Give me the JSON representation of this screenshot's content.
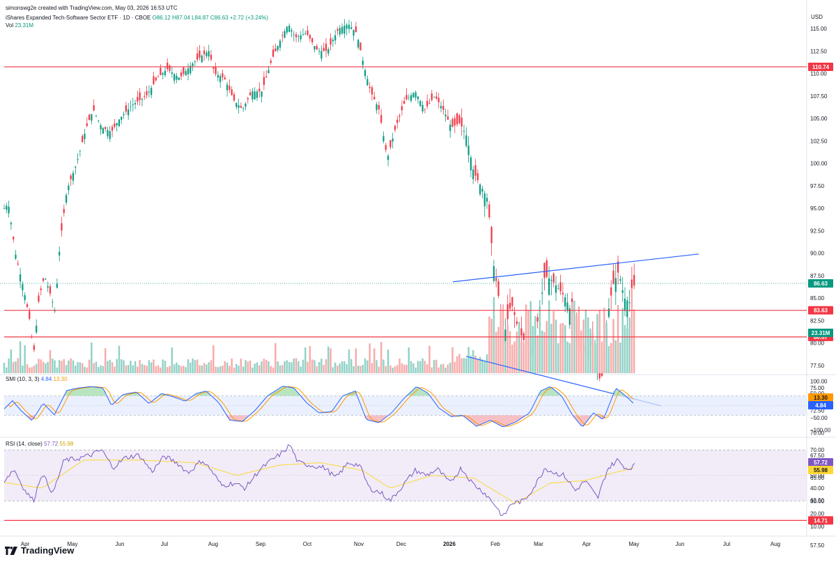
{
  "header": {
    "created": "simonswg2e created with TradingView.com, May 03, 2026 16:53 UTC",
    "symbol": "iShares Expanded Tech-Software Sector ETF · 1D · CBOE",
    "ohlc_o": "O86.12",
    "ohlc_h": "H87.04",
    "ohlc_l": "L84.87",
    "ohlc_c": "C86.63",
    "change": "+2.72 (+3.24%)",
    "vol_label": "Vol",
    "vol_value": "23.31M"
  },
  "currency": "USD",
  "brand": "TradingView",
  "colors": {
    "up": "#089981",
    "down": "#f23645",
    "level": "#f23645",
    "trend": "#2962ff",
    "sm_fast": "#2962ff",
    "sm_slow": "#ff9800",
    "rsi": "#7e57c2",
    "rsi_ma": "#fdd835"
  },
  "chart_data": [
    {
      "type": "candlestick",
      "title": "iShares Expanded Tech-Software Sector ETF · 1D · CBOE",
      "x_ticks": [
        "Apr",
        "May",
        "Jun",
        "Jul",
        "Aug",
        "Sep",
        "Oct",
        "Nov",
        "Dec",
        "2026",
        "Feb",
        "Mar",
        "Apr",
        "May",
        "Jun",
        "Jul",
        "Aug"
      ],
      "y_ticks": [
        "115.00",
        "112.50",
        "110.00",
        "107.50",
        "105.00",
        "102.50",
        "100.00",
        "97.50",
        "95.00",
        "92.50",
        "90.00",
        "87.50",
        "85.00",
        "82.50",
        "80.00",
        "77.50",
        "75.00",
        "72.50",
        "70.00",
        "67.50",
        "65.00",
        "62.50",
        "60.00",
        "57.50"
      ],
      "ylim": [
        56.5,
        116.5
      ],
      "close_path": [
        {
          "x": 0,
          "c": 94.5
        },
        {
          "x": 12,
          "c": 95.5
        },
        {
          "x": 22,
          "c": 90
        },
        {
          "x": 34,
          "c": 86
        },
        {
          "x": 44,
          "c": 82
        },
        {
          "x": 48,
          "c": 78.5
        },
        {
          "x": 56,
          "c": 85
        },
        {
          "x": 64,
          "c": 87.5
        },
        {
          "x": 72,
          "c": 85.5
        },
        {
          "x": 79,
          "c": 83.5
        },
        {
          "x": 86,
          "c": 91
        },
        {
          "x": 96,
          "c": 97
        },
        {
          "x": 110,
          "c": 100
        },
        {
          "x": 124,
          "c": 104
        },
        {
          "x": 134,
          "c": 106
        },
        {
          "x": 146,
          "c": 104
        },
        {
          "x": 160,
          "c": 103.5
        },
        {
          "x": 172,
          "c": 105
        },
        {
          "x": 190,
          "c": 106.5
        },
        {
          "x": 210,
          "c": 107.5
        },
        {
          "x": 226,
          "c": 109.5
        },
        {
          "x": 240,
          "c": 110.5
        },
        {
          "x": 258,
          "c": 109.5
        },
        {
          "x": 275,
          "c": 111
        },
        {
          "x": 290,
          "c": 112
        },
        {
          "x": 300,
          "c": 112.5
        },
        {
          "x": 308,
          "c": 110
        },
        {
          "x": 322,
          "c": 109.5
        },
        {
          "x": 336,
          "c": 107
        },
        {
          "x": 348,
          "c": 106
        },
        {
          "x": 362,
          "c": 108
        },
        {
          "x": 376,
          "c": 108
        },
        {
          "x": 390,
          "c": 111.5
        },
        {
          "x": 404,
          "c": 114
        },
        {
          "x": 414,
          "c": 115.5
        },
        {
          "x": 424,
          "c": 114
        },
        {
          "x": 440,
          "c": 114.5
        },
        {
          "x": 456,
          "c": 112.5
        },
        {
          "x": 470,
          "c": 112.5
        },
        {
          "x": 486,
          "c": 115
        },
        {
          "x": 500,
          "c": 115.5
        },
        {
          "x": 512,
          "c": 114.5
        },
        {
          "x": 522,
          "c": 111
        },
        {
          "x": 532,
          "c": 108
        },
        {
          "x": 544,
          "c": 106
        },
        {
          "x": 556,
          "c": 100.5
        },
        {
          "x": 568,
          "c": 104
        },
        {
          "x": 582,
          "c": 107
        },
        {
          "x": 596,
          "c": 108
        },
        {
          "x": 610,
          "c": 106
        },
        {
          "x": 624,
          "c": 107.5
        },
        {
          "x": 636,
          "c": 106
        },
        {
          "x": 648,
          "c": 104
        },
        {
          "x": 660,
          "c": 104.5
        },
        {
          "x": 670,
          "c": 103
        },
        {
          "x": 680,
          "c": 99
        },
        {
          "x": 690,
          "c": 97.5
        },
        {
          "x": 700,
          "c": 96
        },
        {
          "x": 708,
          "c": 89
        },
        {
          "x": 716,
          "c": 85
        },
        {
          "x": 724,
          "c": 81
        },
        {
          "x": 734,
          "c": 84.5
        },
        {
          "x": 744,
          "c": 81.5
        },
        {
          "x": 754,
          "c": 80
        },
        {
          "x": 762,
          "c": 79.5
        },
        {
          "x": 772,
          "c": 82.5
        },
        {
          "x": 782,
          "c": 87.5
        },
        {
          "x": 792,
          "c": 87
        },
        {
          "x": 802,
          "c": 86
        },
        {
          "x": 812,
          "c": 85
        },
        {
          "x": 822,
          "c": 83
        },
        {
          "x": 832,
          "c": 79
        },
        {
          "x": 842,
          "c": 79.5
        },
        {
          "x": 852,
          "c": 81
        },
        {
          "x": 860,
          "c": 76
        },
        {
          "x": 866,
          "c": 76.5
        },
        {
          "x": 872,
          "c": 83
        },
        {
          "x": 880,
          "c": 86.5
        },
        {
          "x": 888,
          "c": 88
        },
        {
          "x": 896,
          "c": 85
        },
        {
          "x": 904,
          "c": 84.5
        },
        {
          "x": 911,
          "c": 86.63
        }
      ],
      "horizontal_levels": [
        110.74,
        83.63,
        80.67
      ],
      "trendlines": [
        {
          "from": {
            "bar_x": 650,
            "price": 86.8
          },
          "to": {
            "bar_x": 1003,
            "price": 89.9
          }
        },
        {
          "from": {
            "bar_x": 669,
            "price": 78.5
          },
          "to": {
            "bar_x": 949,
            "price": 73.0
          }
        }
      ],
      "last_price": 86.63,
      "price_labels": [
        "110.74",
        "86.63",
        "83.63",
        "80.67",
        "23.31M"
      ]
    },
    {
      "type": "bar",
      "title": "Vol",
      "last_value": "23.31M",
      "relative_heights": {
        "before_jan_2026": 0.12,
        "peak": 1.0,
        "late_period": 0.7
      }
    },
    {
      "type": "line",
      "title": "SMI (10, 3, 3)",
      "series": [
        {
          "name": "SMI",
          "last": "4.84"
        },
        {
          "name": "Signal",
          "last": "13.30"
        }
      ],
      "y_ticks": [
        "100.00",
        "50.00",
        "0.00",
        "−50.00",
        "−100.00"
      ],
      "ylim": [
        -100,
        100
      ],
      "bands": [
        40,
        -40
      ],
      "path": [
        {
          "x": 0,
          "v": -30
        },
        {
          "x": 18,
          "v": 20
        },
        {
          "x": 30,
          "v": -20
        },
        {
          "x": 46,
          "v": -62
        },
        {
          "x": 62,
          "v": 10
        },
        {
          "x": 78,
          "v": -38
        },
        {
          "x": 96,
          "v": 62
        },
        {
          "x": 112,
          "v": 72
        },
        {
          "x": 130,
          "v": 78
        },
        {
          "x": 148,
          "v": 72
        },
        {
          "x": 160,
          "v": 0
        },
        {
          "x": 176,
          "v": 45
        },
        {
          "x": 196,
          "v": 56
        },
        {
          "x": 214,
          "v": 8
        },
        {
          "x": 232,
          "v": 50
        },
        {
          "x": 250,
          "v": 35
        },
        {
          "x": 266,
          "v": 18
        },
        {
          "x": 282,
          "v": 50
        },
        {
          "x": 296,
          "v": 60
        },
        {
          "x": 314,
          "v": 12
        },
        {
          "x": 330,
          "v": -60
        },
        {
          "x": 348,
          "v": -65
        },
        {
          "x": 366,
          "v": -20
        },
        {
          "x": 384,
          "v": 40
        },
        {
          "x": 406,
          "v": 80
        },
        {
          "x": 422,
          "v": 72
        },
        {
          "x": 440,
          "v": 12
        },
        {
          "x": 458,
          "v": -30
        },
        {
          "x": 476,
          "v": -25
        },
        {
          "x": 492,
          "v": 40
        },
        {
          "x": 510,
          "v": 60
        },
        {
          "x": 526,
          "v": -58
        },
        {
          "x": 544,
          "v": -70
        },
        {
          "x": 562,
          "v": -30
        },
        {
          "x": 580,
          "v": 30
        },
        {
          "x": 598,
          "v": 78
        },
        {
          "x": 614,
          "v": 52
        },
        {
          "x": 630,
          "v": -10
        },
        {
          "x": 648,
          "v": -45
        },
        {
          "x": 664,
          "v": -40
        },
        {
          "x": 684,
          "v": -85
        },
        {
          "x": 704,
          "v": -60
        },
        {
          "x": 722,
          "v": -88
        },
        {
          "x": 740,
          "v": -68
        },
        {
          "x": 760,
          "v": -30
        },
        {
          "x": 776,
          "v": 60
        },
        {
          "x": 790,
          "v": 78
        },
        {
          "x": 806,
          "v": 40
        },
        {
          "x": 822,
          "v": -40
        },
        {
          "x": 836,
          "v": -88
        },
        {
          "x": 852,
          "v": -30
        },
        {
          "x": 866,
          "v": -58
        },
        {
          "x": 884,
          "v": 72
        },
        {
          "x": 898,
          "v": 40
        },
        {
          "x": 911,
          "v": 4.84
        }
      ],
      "price_labels": [
        "13.30",
        "4.84"
      ]
    },
    {
      "type": "line",
      "title": "RSI (14, close)",
      "series": [
        {
          "name": "RSI",
          "last": "57.72"
        },
        {
          "name": "RSI MA",
          "last": "55.98"
        }
      ],
      "y_ticks": [
        "70.00",
        "60.00",
        "50.00",
        "40.00",
        "30.00",
        "20.00",
        "10.00"
      ],
      "ylim": [
        10,
        75
      ],
      "bands": [
        70,
        30
      ],
      "level": 14.71,
      "path": [
        {
          "x": 0,
          "v": 42
        },
        {
          "x": 20,
          "v": 55
        },
        {
          "x": 36,
          "v": 38
        },
        {
          "x": 48,
          "v": 30
        },
        {
          "x": 60,
          "v": 52
        },
        {
          "x": 76,
          "v": 36
        },
        {
          "x": 92,
          "v": 62
        },
        {
          "x": 110,
          "v": 63
        },
        {
          "x": 130,
          "v": 66
        },
        {
          "x": 146,
          "v": 70
        },
        {
          "x": 162,
          "v": 56
        },
        {
          "x": 180,
          "v": 64
        },
        {
          "x": 200,
          "v": 66
        },
        {
          "x": 218,
          "v": 53
        },
        {
          "x": 236,
          "v": 65
        },
        {
          "x": 254,
          "v": 60
        },
        {
          "x": 270,
          "v": 52
        },
        {
          "x": 290,
          "v": 62
        },
        {
          "x": 302,
          "v": 55
        },
        {
          "x": 318,
          "v": 42
        },
        {
          "x": 336,
          "v": 44
        },
        {
          "x": 352,
          "v": 40
        },
        {
          "x": 372,
          "v": 54
        },
        {
          "x": 390,
          "v": 62
        },
        {
          "x": 406,
          "v": 68
        },
        {
          "x": 416,
          "v": 74
        },
        {
          "x": 428,
          "v": 60
        },
        {
          "x": 446,
          "v": 58
        },
        {
          "x": 466,
          "v": 56
        },
        {
          "x": 482,
          "v": 48
        },
        {
          "x": 500,
          "v": 60
        },
        {
          "x": 516,
          "v": 58
        },
        {
          "x": 530,
          "v": 40
        },
        {
          "x": 548,
          "v": 36
        },
        {
          "x": 560,
          "v": 30
        },
        {
          "x": 578,
          "v": 42
        },
        {
          "x": 596,
          "v": 54
        },
        {
          "x": 612,
          "v": 50
        },
        {
          "x": 628,
          "v": 55
        },
        {
          "x": 646,
          "v": 44
        },
        {
          "x": 662,
          "v": 56
        },
        {
          "x": 678,
          "v": 44
        },
        {
          "x": 696,
          "v": 36
        },
        {
          "x": 712,
          "v": 26
        },
        {
          "x": 722,
          "v": 17
        },
        {
          "x": 734,
          "v": 28
        },
        {
          "x": 752,
          "v": 30
        },
        {
          "x": 768,
          "v": 42
        },
        {
          "x": 782,
          "v": 56
        },
        {
          "x": 796,
          "v": 52
        },
        {
          "x": 810,
          "v": 50
        },
        {
          "x": 826,
          "v": 38
        },
        {
          "x": 840,
          "v": 46
        },
        {
          "x": 858,
          "v": 32
        },
        {
          "x": 872,
          "v": 55
        },
        {
          "x": 886,
          "v": 62
        },
        {
          "x": 900,
          "v": 55
        },
        {
          "x": 911,
          "v": 57.72
        }
      ],
      "ma_path": [
        {
          "x": 0,
          "v": 45
        },
        {
          "x": 60,
          "v": 40
        },
        {
          "x": 120,
          "v": 62
        },
        {
          "x": 200,
          "v": 62
        },
        {
          "x": 280,
          "v": 60
        },
        {
          "x": 340,
          "v": 50
        },
        {
          "x": 400,
          "v": 58
        },
        {
          "x": 460,
          "v": 60
        },
        {
          "x": 520,
          "v": 54
        },
        {
          "x": 560,
          "v": 40
        },
        {
          "x": 620,
          "v": 50
        },
        {
          "x": 680,
          "v": 48
        },
        {
          "x": 740,
          "v": 28
        },
        {
          "x": 790,
          "v": 44
        },
        {
          "x": 840,
          "v": 46
        },
        {
          "x": 880,
          "v": 52
        },
        {
          "x": 911,
          "v": 55.98
        }
      ],
      "price_labels": [
        "57.72",
        "55.98",
        "14.71"
      ]
    }
  ]
}
